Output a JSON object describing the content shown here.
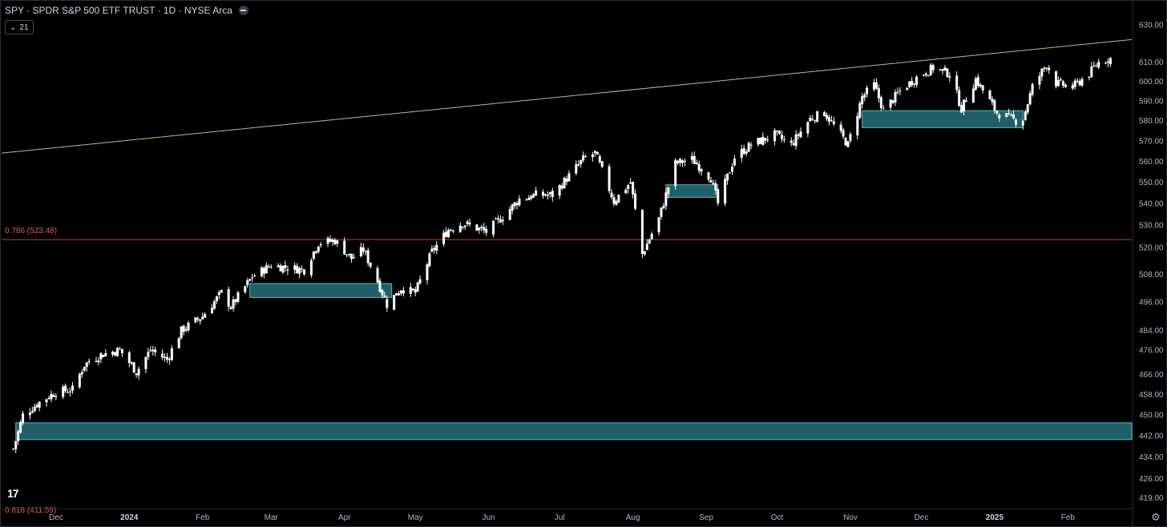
{
  "header": {
    "title": "SPY · SPDR S&P 500 ETF TRUST · 1D · NYSE Arca",
    "indicator_count": "21"
  },
  "colors": {
    "background": "#000000",
    "candle": "#ffffff",
    "zone_fill": "#1f5f68",
    "zone_stroke": "#58b8c4",
    "trendline": "#c9b870",
    "fib_line": "#c0393b",
    "fib_label": "#e05a5a",
    "axis_text": "#b2b5be"
  },
  "chart_data": {
    "type": "candlestick",
    "title": "SPY · SPDR S&P 500 ETF TRUST · 1D · NYSE Arca",
    "x_ticks": [
      {
        "label": "Dec",
        "date": "2023-12-01"
      },
      {
        "label": "2024",
        "date": "2024-01-01"
      },
      {
        "label": "Feb",
        "date": "2024-02-01"
      },
      {
        "label": "Mar",
        "date": "2024-03-01"
      },
      {
        "label": "Apr",
        "date": "2024-04-01"
      },
      {
        "label": "May",
        "date": "2024-05-01"
      },
      {
        "label": "Jun",
        "date": "2024-06-01"
      },
      {
        "label": "Jul",
        "date": "2024-07-01"
      },
      {
        "label": "Aug",
        "date": "2024-08-01"
      },
      {
        "label": "Sep",
        "date": "2024-09-01"
      },
      {
        "label": "Oct",
        "date": "2024-10-01"
      },
      {
        "label": "Nov",
        "date": "2024-11-01"
      },
      {
        "label": "Dec",
        "date": "2024-12-01"
      },
      {
        "label": "2025",
        "date": "2025-01-01"
      },
      {
        "label": "Feb",
        "date": "2025-02-01"
      }
    ],
    "y_ticks": [
      "630.00",
      "610.00",
      "600.00",
      "590.00",
      "580.00",
      "570.00",
      "560.00",
      "550.00",
      "540.00",
      "530.00",
      "520.00",
      "508.00",
      "496.00",
      "484.00",
      "476.00",
      "466.00",
      "458.00",
      "450.00",
      "442.00",
      "434.00",
      "426.00",
      "419.00"
    ],
    "y_scale": "log",
    "y_range": [
      416,
      640
    ],
    "price_path": [
      [
        "2023-11-13",
        437
      ],
      [
        "2023-11-17",
        450
      ],
      [
        "2023-11-24",
        455
      ],
      [
        "2023-12-01",
        459
      ],
      [
        "2023-12-08",
        460
      ],
      [
        "2023-12-13",
        470
      ],
      [
        "2023-12-20",
        474
      ],
      [
        "2023-12-28",
        476
      ],
      [
        "2024-01-04",
        467
      ],
      [
        "2024-01-10",
        476
      ],
      [
        "2024-01-17",
        472
      ],
      [
        "2024-01-23",
        484
      ],
      [
        "2024-02-01",
        490
      ],
      [
        "2024-02-09",
        500
      ],
      [
        "2024-02-13",
        494
      ],
      [
        "2024-02-22",
        507
      ],
      [
        "2024-03-01",
        512
      ],
      [
        "2024-03-08",
        511
      ],
      [
        "2024-03-15",
        510
      ],
      [
        "2024-03-21",
        522
      ],
      [
        "2024-03-28",
        523
      ],
      [
        "2024-04-04",
        515
      ],
      [
        "2024-04-09",
        519
      ],
      [
        "2024-04-15",
        505
      ],
      [
        "2024-04-19",
        495
      ],
      [
        "2024-04-25",
        502
      ],
      [
        "2024-05-01",
        500
      ],
      [
        "2024-05-08",
        518
      ],
      [
        "2024-05-15",
        528
      ],
      [
        "2024-05-21",
        531
      ],
      [
        "2024-05-31",
        527
      ],
      [
        "2024-06-07",
        534
      ],
      [
        "2024-06-14",
        542
      ],
      [
        "2024-06-21",
        544
      ],
      [
        "2024-06-28",
        544
      ],
      [
        "2024-07-05",
        553
      ],
      [
        "2024-07-11",
        561
      ],
      [
        "2024-07-16",
        564
      ],
      [
        "2024-07-24",
        541
      ],
      [
        "2024-07-31",
        550
      ],
      [
        "2024-08-05",
        517
      ],
      [
        "2024-08-12",
        533
      ],
      [
        "2024-08-19",
        559
      ],
      [
        "2024-08-26",
        561
      ],
      [
        "2024-09-03",
        552
      ],
      [
        "2024-09-06",
        540
      ],
      [
        "2024-09-13",
        562
      ],
      [
        "2024-09-20",
        568
      ],
      [
        "2024-09-30",
        573
      ],
      [
        "2024-10-07",
        568
      ],
      [
        "2024-10-15",
        581
      ],
      [
        "2024-10-21",
        584
      ],
      [
        "2024-10-31",
        568
      ],
      [
        "2024-11-06",
        592
      ],
      [
        "2024-11-11",
        598
      ],
      [
        "2024-11-15",
        585
      ],
      [
        "2024-11-22",
        595
      ],
      [
        "2024-11-29",
        602
      ],
      [
        "2024-12-06",
        607
      ],
      [
        "2024-12-13",
        604
      ],
      [
        "2024-12-18",
        586
      ],
      [
        "2024-12-24",
        601
      ],
      [
        "2025-01-02",
        584
      ],
      [
        "2025-01-10",
        580
      ],
      [
        "2025-01-13",
        581
      ],
      [
        "2025-01-17",
        597
      ],
      [
        "2025-01-23",
        609
      ],
      [
        "2025-01-27",
        599
      ],
      [
        "2025-02-03",
        597
      ],
      [
        "2025-02-10",
        604
      ],
      [
        "2025-02-14",
        610
      ],
      [
        "2025-02-19",
        612
      ]
    ],
    "zones": [
      {
        "name": "demand-zone-lower",
        "start": "2023-11-14",
        "end": "2025-02-28",
        "low": 440.6,
        "high": 447.0
      },
      {
        "name": "demand-zone-march",
        "start": "2024-02-21",
        "end": "2024-04-21",
        "low": 498.0,
        "high": 504.0
      },
      {
        "name": "demand-zone-august",
        "start": "2024-08-15",
        "end": "2024-09-06",
        "low": 542.9,
        "high": 548.8
      },
      {
        "name": "demand-zone-november",
        "start": "2024-11-06",
        "end": "2025-01-13",
        "low": 576.5,
        "high": 585.0
      }
    ],
    "trendline": {
      "start_date": "2023-11-08",
      "start_price": 564.0,
      "end_date": "2025-02-28",
      "end_price": 622.0
    },
    "fib_level": {
      "label": "0.786 (523.48)",
      "price": 523.48
    },
    "partial_label": "0.618 (411.59)",
    "grid": false,
    "legend": "none"
  }
}
